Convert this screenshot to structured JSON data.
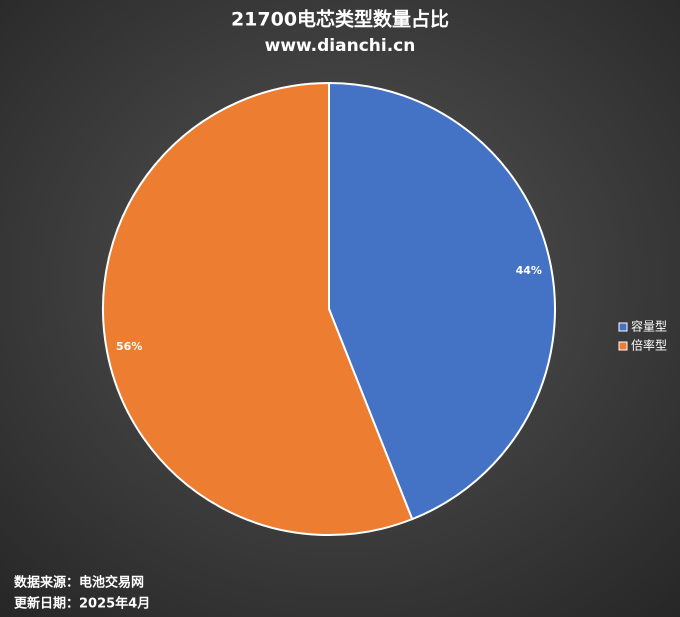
{
  "chart_data": {
    "type": "pie",
    "title": "21700电芯类型数量占比",
    "subtitle": "www.dianchi.cn",
    "categories": [
      "容量型",
      "倍率型"
    ],
    "values": [
      44,
      56
    ],
    "value_labels": [
      "44%",
      "56%"
    ],
    "colors": [
      "#4472c4",
      "#ed7d31"
    ],
    "legend": "right",
    "notes": [
      "数据来源：电池交易网",
      "更新日期：2025年4月"
    ]
  }
}
